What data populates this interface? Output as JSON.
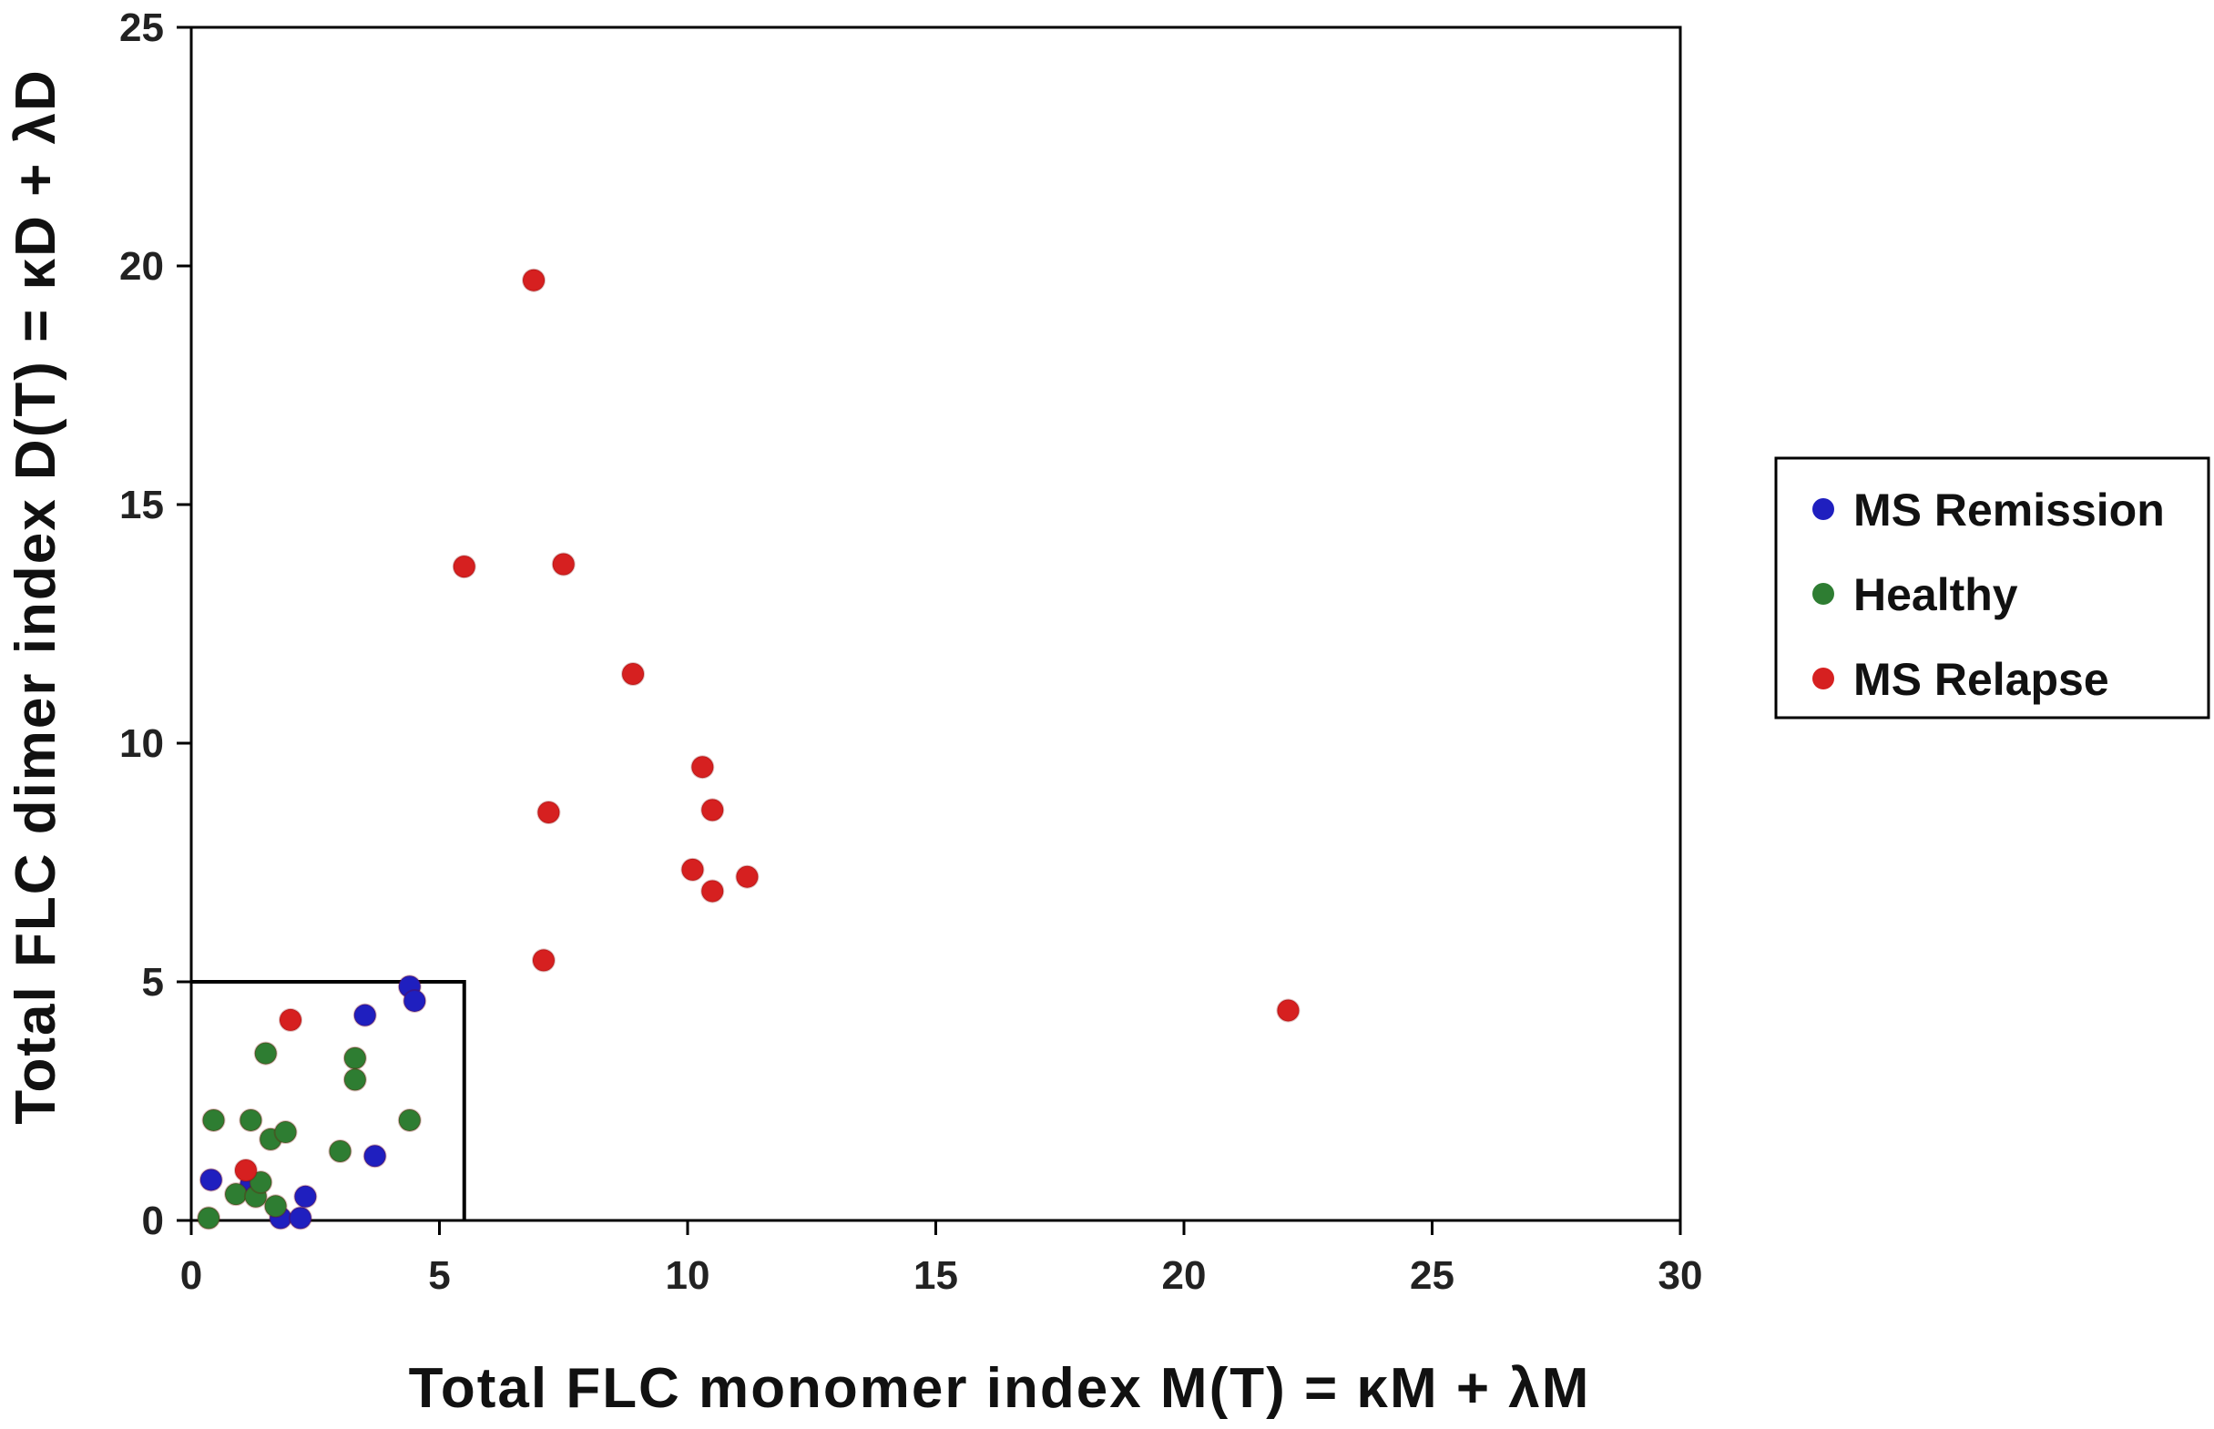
{
  "chart_data": {
    "type": "scatter",
    "xlabel": "Total FLC monomer index M(T) = κM + λM",
    "ylabel": "Total FLC dimer index D(T) = κD + λD",
    "xlim": [
      0,
      30
    ],
    "ylim": [
      0,
      25
    ],
    "x_ticks": [
      "0",
      "5",
      "10",
      "15",
      "20",
      "25",
      "30"
    ],
    "y_ticks": [
      "0",
      "5",
      "10",
      "15",
      "20",
      "25"
    ],
    "grid": false,
    "legend_position": "right",
    "annotations": [
      {
        "type": "box",
        "x": [
          0,
          5.5
        ],
        "y": [
          0,
          5
        ]
      }
    ],
    "series": [
      {
        "name": "MS Remission",
        "color": "#1f1fbf",
        "points": [
          [
            0.4,
            0.85
          ],
          [
            1.2,
            0.75
          ],
          [
            1.8,
            0.05
          ],
          [
            2.2,
            0.05
          ],
          [
            2.3,
            0.5
          ],
          [
            3.5,
            4.3
          ],
          [
            3.7,
            1.35
          ],
          [
            4.4,
            4.9
          ],
          [
            4.5,
            4.6
          ]
        ]
      },
      {
        "name": "Healthy",
        "color": "#2e7d32",
        "points": [
          [
            0.35,
            0.05
          ],
          [
            0.45,
            2.1
          ],
          [
            0.9,
            0.55
          ],
          [
            1.2,
            2.1
          ],
          [
            1.3,
            0.5
          ],
          [
            1.4,
            0.8
          ],
          [
            1.5,
            3.5
          ],
          [
            1.6,
            1.7
          ],
          [
            1.7,
            0.3
          ],
          [
            1.9,
            1.85
          ],
          [
            3.0,
            1.45
          ],
          [
            3.3,
            3.4
          ],
          [
            3.3,
            2.95
          ],
          [
            4.4,
            2.1
          ]
        ]
      },
      {
        "name": "MS Relapse",
        "color": "#d62020",
        "points": [
          [
            1.1,
            1.05
          ],
          [
            2.0,
            4.2
          ],
          [
            5.5,
            13.7
          ],
          [
            6.9,
            19.7
          ],
          [
            7.1,
            5.45
          ],
          [
            7.2,
            8.55
          ],
          [
            7.5,
            13.75
          ],
          [
            8.9,
            11.45
          ],
          [
            10.1,
            7.35
          ],
          [
            10.3,
            9.5
          ],
          [
            10.5,
            8.6
          ],
          [
            10.5,
            6.9
          ],
          [
            11.2,
            7.2
          ],
          [
            22.1,
            4.4
          ]
        ]
      }
    ]
  }
}
